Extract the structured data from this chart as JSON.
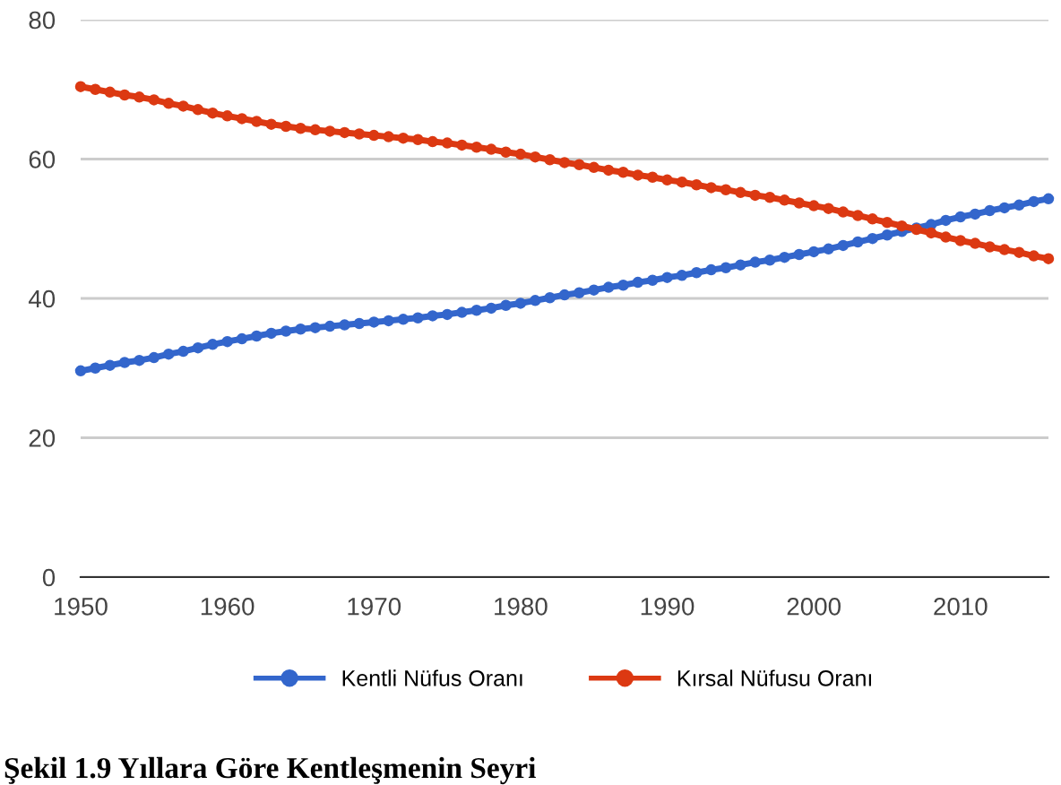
{
  "chart_data": {
    "type": "line",
    "title": "Şekil 1.9 Yıllara Göre Kentleşmenin Seyri",
    "x": [
      1950,
      1951,
      1952,
      1953,
      1954,
      1955,
      1956,
      1957,
      1958,
      1959,
      1960,
      1961,
      1962,
      1963,
      1964,
      1965,
      1966,
      1967,
      1968,
      1969,
      1970,
      1971,
      1972,
      1973,
      1974,
      1975,
      1976,
      1977,
      1978,
      1979,
      1980,
      1981,
      1982,
      1983,
      1984,
      1985,
      1986,
      1987,
      1988,
      1989,
      1990,
      1991,
      1992,
      1993,
      1994,
      1995,
      1996,
      1997,
      1998,
      1999,
      2000,
      2001,
      2002,
      2003,
      2004,
      2005,
      2006,
      2007,
      2008,
      2009,
      2010,
      2011,
      2012,
      2013,
      2014,
      2015,
      2016
    ],
    "series": [
      {
        "name": "Kentli Nüfus Oranı",
        "color": "#3366cc",
        "values": [
          29.6,
          30.0,
          30.4,
          30.8,
          31.1,
          31.5,
          32.0,
          32.4,
          32.9,
          33.4,
          33.8,
          34.2,
          34.6,
          35.0,
          35.3,
          35.6,
          35.8,
          36.0,
          36.2,
          36.4,
          36.6,
          36.8,
          37.0,
          37.2,
          37.5,
          37.7,
          38.0,
          38.3,
          38.6,
          39.0,
          39.3,
          39.7,
          40.1,
          40.5,
          40.8,
          41.2,
          41.6,
          41.9,
          42.3,
          42.6,
          43.0,
          43.3,
          43.7,
          44.1,
          44.4,
          44.8,
          45.2,
          45.5,
          45.9,
          46.3,
          46.7,
          47.1,
          47.6,
          48.1,
          48.6,
          49.1,
          49.6,
          50.1,
          50.6,
          51.2,
          51.7,
          52.1,
          52.6,
          53.0,
          53.4,
          53.9,
          54.3
        ]
      },
      {
        "name": "Kırsal Nüfusu Oranı",
        "color": "#dc3912",
        "values": [
          70.4,
          70.0,
          69.6,
          69.2,
          68.9,
          68.5,
          68.0,
          67.6,
          67.1,
          66.6,
          66.2,
          65.8,
          65.4,
          65.0,
          64.7,
          64.4,
          64.2,
          64.0,
          63.8,
          63.6,
          63.4,
          63.2,
          63.0,
          62.8,
          62.5,
          62.3,
          62.0,
          61.7,
          61.4,
          61.0,
          60.7,
          60.3,
          59.9,
          59.5,
          59.2,
          58.8,
          58.4,
          58.1,
          57.7,
          57.4,
          57.0,
          56.7,
          56.3,
          55.9,
          55.6,
          55.2,
          54.8,
          54.5,
          54.1,
          53.7,
          53.3,
          52.9,
          52.4,
          51.9,
          51.4,
          50.9,
          50.4,
          49.9,
          49.4,
          48.8,
          48.3,
          47.9,
          47.4,
          47.0,
          46.6,
          46.1,
          45.7
        ]
      }
    ],
    "xlim": [
      1950,
      2016
    ],
    "xticks": [
      1950,
      1960,
      1970,
      1980,
      1990,
      2000,
      2010
    ],
    "ylim": [
      0,
      80
    ],
    "yticks": [
      0,
      20,
      40,
      60,
      80
    ],
    "grid": "y",
    "legend": "bottom",
    "marker": "circle",
    "line_style": "solid"
  }
}
